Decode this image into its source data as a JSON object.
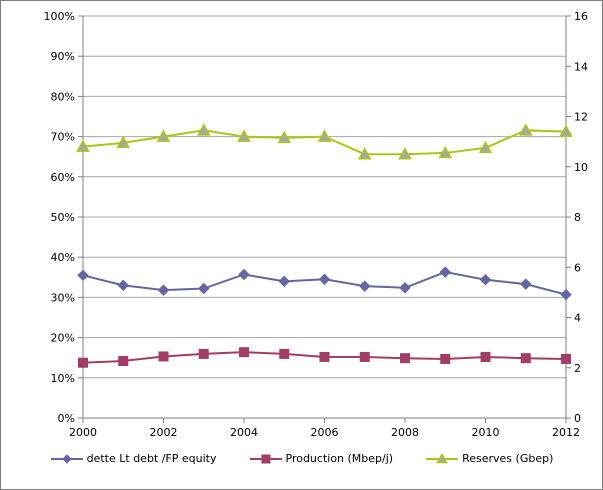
{
  "frame": {
    "background": "#ffffff",
    "border_color": "#7f7f7f"
  },
  "chart_data": {
    "type": "line",
    "title": "",
    "grid": true,
    "legend_position": "bottom",
    "x": [
      2000,
      2001,
      2002,
      2003,
      2004,
      2005,
      2006,
      2007,
      2008,
      2009,
      2010,
      2011,
      2012
    ],
    "x_axis": {
      "range": [
        2000,
        2012
      ],
      "tick_years": [
        2000,
        2002,
        2004,
        2006,
        2008,
        2010,
        2012
      ],
      "tick_labels": [
        "2000",
        "2002",
        "2004",
        "2006",
        "2008",
        "2010",
        "2012"
      ]
    },
    "left_axis": {
      "range": [
        0,
        100
      ],
      "step": 10,
      "tick_labels": [
        "0%",
        "10%",
        "20%",
        "30%",
        "40%",
        "50%",
        "60%",
        "70%",
        "80%",
        "90%",
        "100%"
      ]
    },
    "right_axis": {
      "range": [
        0,
        16
      ],
      "step": 2,
      "tick_labels": [
        "0",
        "2",
        "4",
        "6",
        "8",
        "10",
        "12",
        "14",
        "16"
      ]
    },
    "series": [
      {
        "name": "dette Lt debt /FP equity",
        "axis": "left",
        "marker": "diamond",
        "color": "#6466a4",
        "marker_fill": "#6466a4",
        "marker_stroke": "#6466a4",
        "values": [
          35.5,
          33.0,
          31.8,
          32.2,
          35.7,
          34.0,
          34.5,
          32.8,
          32.4,
          36.3,
          34.4,
          33.3,
          30.7
        ]
      },
      {
        "name": "Production (Mbep/j)",
        "axis": "right",
        "marker": "square",
        "color": "#a13d67",
        "marker_fill": "#a13d67",
        "marker_stroke": "#a13d67",
        "values": [
          2.2,
          2.27,
          2.45,
          2.55,
          2.62,
          2.55,
          2.43,
          2.43,
          2.38,
          2.35,
          2.43,
          2.38,
          2.35
        ]
      },
      {
        "name": "Reserves (Gbep)",
        "axis": "right",
        "marker": "triangle",
        "color": "#a5c716",
        "marker_fill": "#a6a6a6",
        "marker_stroke": "#a5c716",
        "values": [
          10.8,
          10.95,
          11.2,
          11.45,
          11.2,
          11.15,
          11.2,
          10.5,
          10.5,
          10.55,
          10.75,
          11.45,
          11.4
        ]
      }
    ],
    "style": {
      "grid_color": "#a6a6a6",
      "axis_color": "#808080",
      "text_color": "#000000",
      "background": "#ffffff"
    }
  }
}
